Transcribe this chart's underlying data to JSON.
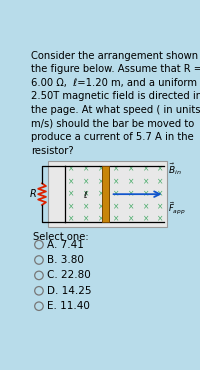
{
  "bg_color": "#b8dcea",
  "question_text": "Consider the arrangement shown in\nthe figure below. Assume that R =\n6.00 Ω,  ℓ=1.20 m, and a uniform\n2.50T magnetic field is directed into\nthe page. At what speed ( in units of\nm/s) should the bar be moved to\nproduce a current of 5.7 A in the\nresistor?",
  "select_text": "Select one:",
  "options": [
    "A. 7.41",
    "B. 3.80",
    "C. 22.80",
    "D. 14.25",
    "E. 11.40"
  ],
  "bar_color": "#c8850a",
  "resistor_color": "#dd2200",
  "arrow_color": "#1155cc",
  "x_color": "#44aa66",
  "rail_color": "#888888",
  "text_fontsize": 7.2,
  "opt_fontsize": 7.5,
  "fig_box_color": "#e8e8e8",
  "fig_box_edge": "#999999"
}
